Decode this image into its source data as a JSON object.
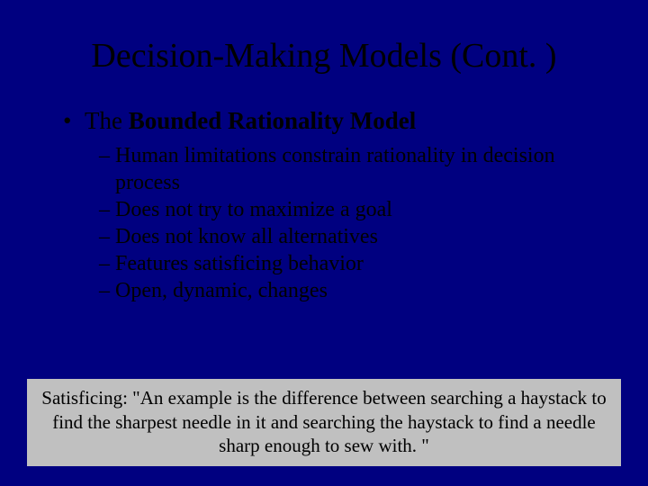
{
  "slide": {
    "background_color": "#000080",
    "title": {
      "text": "Decision-Making Models (Cont. )",
      "color": "#000000",
      "fontsize": 38,
      "fontweight": "normal"
    },
    "main_bullet": {
      "marker": "•",
      "prefix_plain": "The ",
      "bold_part": "Bounded Rationality Model",
      "color": "#000000",
      "fontsize": 27
    },
    "sub_bullets": {
      "marker": "–",
      "color": "#000000",
      "fontsize": 24,
      "items": [
        "Human limitations constrain rationality in decision process",
        "Does not try to maximize a goal",
        "Does not know all alternatives",
        "Features satisficing behavior",
        "Open, dynamic, changes"
      ]
    },
    "footnote": {
      "background_color": "#c0c0c0",
      "text_color": "#000000",
      "fontsize": 21,
      "text": "Satisficing:  \"An example is the difference between searching a haystack to find the sharpest needle in it and searching the haystack to find a needle sharp enough to sew with. \""
    }
  }
}
